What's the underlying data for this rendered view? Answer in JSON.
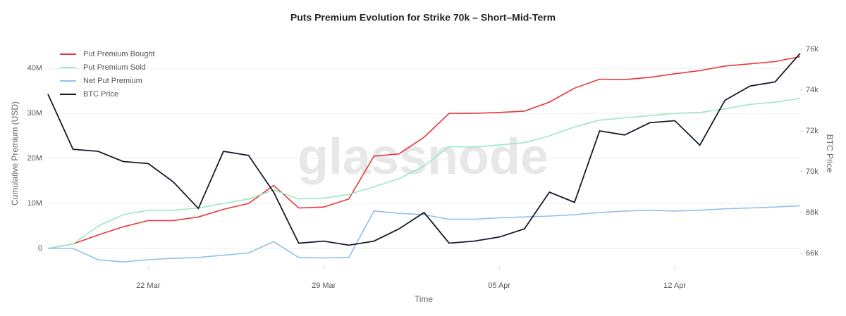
{
  "chart_data": {
    "type": "line",
    "title": "Puts Premium Evolution for Strike 70k – Short–Mid-Term",
    "watermark": "glassnode",
    "xlabel": "Time",
    "ylabel": "Cumulative Premium (USD)",
    "y2label": "BTC Price",
    "x": [
      "18 Mar",
      "19 Mar",
      "20 Mar",
      "21 Mar",
      "22 Mar",
      "23 Mar",
      "24 Mar",
      "25 Mar",
      "26 Mar",
      "27 Mar",
      "28 Mar",
      "29 Mar",
      "30 Mar",
      "31 Mar",
      "01 Apr",
      "02 Apr",
      "03 Apr",
      "04 Apr",
      "05 Apr",
      "06 Apr",
      "07 Apr",
      "08 Apr",
      "09 Apr",
      "10 Apr",
      "11 Apr",
      "12 Apr",
      "13 Apr",
      "14 Apr",
      "15 Apr",
      "16 Apr",
      "17 Apr"
    ],
    "xticks": [
      "22 Mar",
      "29 Mar",
      "05 Apr",
      "12 Apr"
    ],
    "ylim": [
      -3900000,
      45800000
    ],
    "yticks": [
      {
        "value": 0,
        "label": "0"
      },
      {
        "value": 10000000,
        "label": "10M"
      },
      {
        "value": 20000000,
        "label": "20M"
      },
      {
        "value": 30000000,
        "label": "30M"
      },
      {
        "value": 40000000,
        "label": "40M"
      }
    ],
    "y2lim": [
      65380,
      76345
    ],
    "y2ticks": [
      {
        "value": 66000,
        "label": "66k"
      },
      {
        "value": 68000,
        "label": "68k"
      },
      {
        "value": 70000,
        "label": "70k"
      },
      {
        "value": 72000,
        "label": "72k"
      },
      {
        "value": 74000,
        "label": "74k"
      },
      {
        "value": 76000,
        "label": "76k"
      }
    ],
    "grid": true,
    "legend": "top-left",
    "series": [
      {
        "name": "Put Premium Bought",
        "color": "#e8363a",
        "values": [
          0,
          1000000,
          3000000,
          4800000,
          6200000,
          6200000,
          7000000,
          8700000,
          10000000,
          14000000,
          9000000,
          9200000,
          11000000,
          20500000,
          21000000,
          24700000,
          30000000,
          30000000,
          30200000,
          30500000,
          32500000,
          35600000,
          37600000,
          37500000,
          38000000,
          38800000,
          39500000,
          40500000,
          41000000,
          41500000,
          42600000
        ]
      },
      {
        "name": "Put Premium Sold",
        "color": "#9de8c2",
        "values": [
          0,
          1000000,
          5000000,
          7500000,
          8500000,
          8500000,
          9000000,
          10000000,
          11000000,
          13000000,
          11000000,
          11200000,
          12000000,
          13700000,
          15500000,
          18300000,
          22600000,
          22500000,
          23000000,
          23500000,
          25000000,
          27000000,
          28500000,
          29000000,
          29500000,
          30000000,
          30200000,
          31000000,
          32000000,
          32500000,
          33300000
        ]
      },
      {
        "name": "Net Put Premium",
        "color": "#8ec0f0",
        "values": [
          0,
          0,
          -2500000,
          -3000000,
          -2500000,
          -2200000,
          -2000000,
          -1500000,
          -1000000,
          1500000,
          -2000000,
          -2100000,
          -2000000,
          8300000,
          7800000,
          7500000,
          6500000,
          6500000,
          6800000,
          7000000,
          7200000,
          7500000,
          8000000,
          8300000,
          8500000,
          8300000,
          8500000,
          8800000,
          9000000,
          9200000,
          9500000
        ]
      },
      {
        "name": "BTC Price",
        "color": "#141b2d",
        "axis": "y2",
        "values": [
          73800,
          71100,
          71000,
          70500,
          70400,
          69500,
          68200,
          71000,
          70800,
          69000,
          66500,
          66600,
          66400,
          66600,
          67200,
          68000,
          66500,
          66600,
          66800,
          67200,
          69000,
          68500,
          72000,
          71800,
          72400,
          72500,
          71300,
          73500,
          74200,
          74400,
          75800
        ]
      }
    ]
  }
}
